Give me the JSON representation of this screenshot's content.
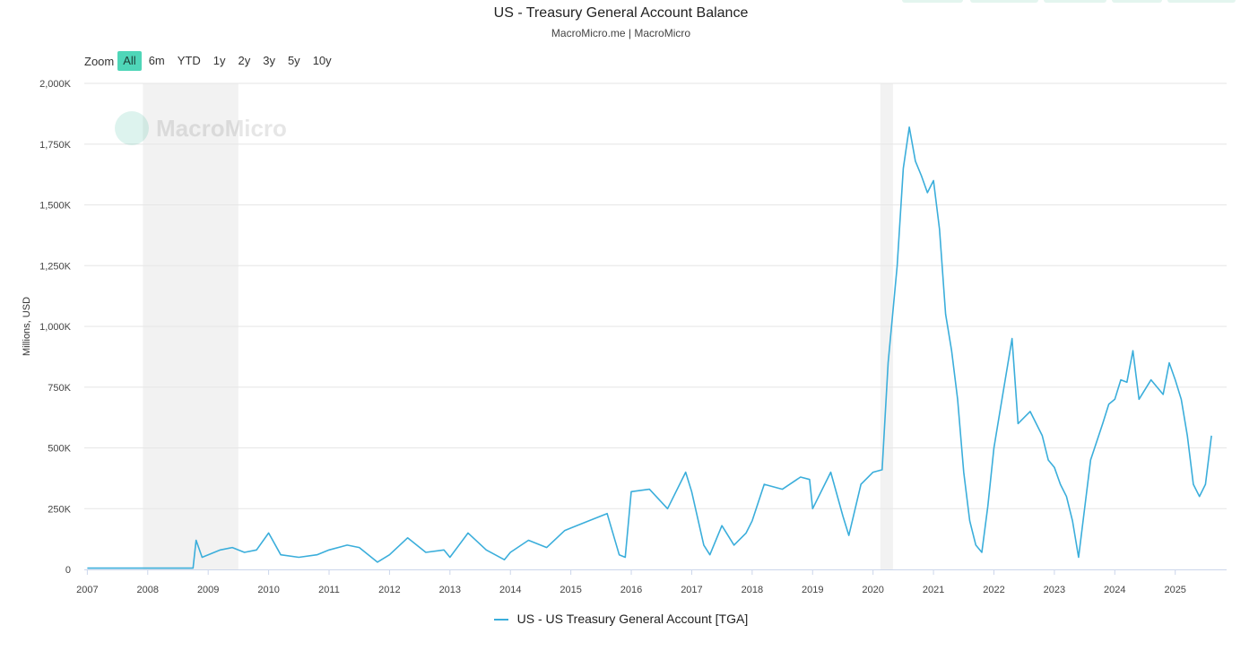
{
  "header": {
    "title": "US - Treasury General Account Balance",
    "subtitle": "MacroMicro.me | MacroMicro"
  },
  "zoom": {
    "label": "Zoom",
    "options": [
      "All",
      "6m",
      "YTD",
      "1y",
      "2y",
      "3y",
      "5y",
      "10y"
    ],
    "selected": "All"
  },
  "watermark": {
    "text": "MacroMicro"
  },
  "colors": {
    "series": "#3baedb",
    "recession": "#f2f2f2",
    "grid": "#e6e6e6",
    "accent": "#4fd6b8"
  },
  "chart_data": {
    "type": "line",
    "title": "US - Treasury General Account Balance",
    "ylabel": "Millions, USD",
    "xlabel": "",
    "xlim": [
      2006.95,
      2025.85
    ],
    "ylim": [
      0,
      2000
    ],
    "y_ticks": [
      0,
      250,
      500,
      750,
      1000,
      1250,
      1500,
      1750,
      2000
    ],
    "y_tick_labels": [
      "0",
      "250K",
      "500K",
      "750K",
      "1,000K",
      "1,250K",
      "1,500K",
      "1,750K",
      "2,000K"
    ],
    "x_ticks": [
      2007,
      2008,
      2009,
      2010,
      2011,
      2012,
      2013,
      2014,
      2015,
      2016,
      2017,
      2018,
      2019,
      2020,
      2021,
      2022,
      2023,
      2024,
      2025
    ],
    "x_tick_labels": [
      "2007",
      "2008",
      "2009",
      "2010",
      "2011",
      "2012",
      "2013",
      "2014",
      "2015",
      "2016",
      "2017",
      "2018",
      "2019",
      "2020",
      "2021",
      "2022",
      "2023",
      "2024",
      "2025"
    ],
    "recessions": [
      [
        2007.92,
        2009.5
      ],
      [
        2020.12,
        2020.33
      ]
    ],
    "grid": true,
    "legend_position": "bottom-center",
    "series": [
      {
        "name": "US - US Treasury General Account [TGA]",
        "points": [
          [
            2007.0,
            5
          ],
          [
            2007.3,
            5
          ],
          [
            2007.6,
            5
          ],
          [
            2007.9,
            5
          ],
          [
            2008.2,
            5
          ],
          [
            2008.5,
            5
          ],
          [
            2008.75,
            5
          ],
          [
            2008.8,
            120
          ],
          [
            2008.9,
            50
          ],
          [
            2009.0,
            60
          ],
          [
            2009.2,
            80
          ],
          [
            2009.4,
            90
          ],
          [
            2009.6,
            70
          ],
          [
            2009.8,
            80
          ],
          [
            2010.0,
            150
          ],
          [
            2010.2,
            60
          ],
          [
            2010.5,
            50
          ],
          [
            2010.8,
            60
          ],
          [
            2011.0,
            80
          ],
          [
            2011.3,
            100
          ],
          [
            2011.5,
            90
          ],
          [
            2011.8,
            30
          ],
          [
            2012.0,
            60
          ],
          [
            2012.3,
            130
          ],
          [
            2012.6,
            70
          ],
          [
            2012.9,
            80
          ],
          [
            2013.0,
            50
          ],
          [
            2013.3,
            150
          ],
          [
            2013.6,
            80
          ],
          [
            2013.9,
            40
          ],
          [
            2014.0,
            70
          ],
          [
            2014.3,
            120
          ],
          [
            2014.6,
            90
          ],
          [
            2014.9,
            160
          ],
          [
            2015.0,
            170
          ],
          [
            2015.3,
            200
          ],
          [
            2015.6,
            230
          ],
          [
            2015.8,
            60
          ],
          [
            2015.9,
            50
          ],
          [
            2016.0,
            320
          ],
          [
            2016.3,
            330
          ],
          [
            2016.6,
            250
          ],
          [
            2016.9,
            400
          ],
          [
            2017.0,
            320
          ],
          [
            2017.2,
            100
          ],
          [
            2017.3,
            60
          ],
          [
            2017.5,
            180
          ],
          [
            2017.7,
            100
          ],
          [
            2017.9,
            150
          ],
          [
            2018.0,
            200
          ],
          [
            2018.2,
            350
          ],
          [
            2018.5,
            330
          ],
          [
            2018.8,
            380
          ],
          [
            2018.95,
            370
          ],
          [
            2019.0,
            250
          ],
          [
            2019.3,
            400
          ],
          [
            2019.5,
            220
          ],
          [
            2019.6,
            140
          ],
          [
            2019.8,
            350
          ],
          [
            2020.0,
            400
          ],
          [
            2020.15,
            410
          ],
          [
            2020.25,
            850
          ],
          [
            2020.4,
            1250
          ],
          [
            2020.5,
            1650
          ],
          [
            2020.6,
            1820
          ],
          [
            2020.7,
            1680
          ],
          [
            2020.8,
            1620
          ],
          [
            2020.9,
            1550
          ],
          [
            2021.0,
            1600
          ],
          [
            2021.1,
            1400
          ],
          [
            2021.2,
            1050
          ],
          [
            2021.3,
            900
          ],
          [
            2021.4,
            700
          ],
          [
            2021.5,
            400
          ],
          [
            2021.6,
            200
          ],
          [
            2021.7,
            100
          ],
          [
            2021.8,
            70
          ],
          [
            2021.9,
            260
          ],
          [
            2022.0,
            500
          ],
          [
            2022.1,
            650
          ],
          [
            2022.3,
            950
          ],
          [
            2022.4,
            600
          ],
          [
            2022.6,
            650
          ],
          [
            2022.8,
            550
          ],
          [
            2022.9,
            450
          ],
          [
            2023.0,
            420
          ],
          [
            2023.1,
            350
          ],
          [
            2023.2,
            300
          ],
          [
            2023.3,
            200
          ],
          [
            2023.4,
            50
          ],
          [
            2023.5,
            250
          ],
          [
            2023.6,
            450
          ],
          [
            2023.8,
            600
          ],
          [
            2023.9,
            680
          ],
          [
            2024.0,
            700
          ],
          [
            2024.1,
            780
          ],
          [
            2024.2,
            770
          ],
          [
            2024.3,
            900
          ],
          [
            2024.4,
            700
          ],
          [
            2024.6,
            780
          ],
          [
            2024.8,
            720
          ],
          [
            2024.9,
            850
          ],
          [
            2025.0,
            780
          ],
          [
            2025.1,
            700
          ],
          [
            2025.2,
            550
          ],
          [
            2025.3,
            350
          ],
          [
            2025.4,
            300
          ],
          [
            2025.5,
            350
          ],
          [
            2025.6,
            550
          ]
        ]
      }
    ]
  }
}
